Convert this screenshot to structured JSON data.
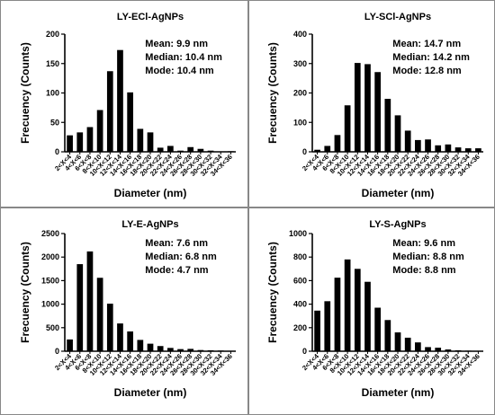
{
  "chart_data": [
    {
      "type": "bar",
      "title": "LY-ECl-AgNPs",
      "xlabel": "Diameter (nm)",
      "ylabel": "Frecuency (Counts)",
      "ylim": [
        0,
        200
      ],
      "yticks": [
        0,
        50,
        100,
        150,
        200
      ],
      "stats": [
        "Mean: 9.9 nm",
        "Median: 10.4 nm",
        "Mode: 10.4 nm"
      ],
      "categories": [
        "2<X<4",
        "4<X<6",
        "6<X<8",
        "8<X<10",
        "10<X<12",
        "12<X<14",
        "14<X<16",
        "16<X<18",
        "18<X<20",
        "20<X<22",
        "22<X<24",
        "24<X<26",
        "26<X<28",
        "28<X<30",
        "30<X<32",
        "32<X<34",
        "34<X<36"
      ],
      "values": [
        28,
        33,
        42,
        71,
        137,
        173,
        101,
        39,
        33,
        7,
        10,
        2,
        8,
        5,
        2,
        0,
        1
      ]
    },
    {
      "type": "bar",
      "title": "LY-SCl-AgNPs",
      "xlabel": "Diameter (nm)",
      "ylabel": "Frecuency (Counts)",
      "ylim": [
        0,
        400
      ],
      "yticks": [
        0,
        100,
        200,
        300,
        400
      ],
      "stats": [
        "Mean: 14.7 nm",
        "Median: 14.2 nm",
        "Mode: 12.8 nm"
      ],
      "categories": [
        "2<X<4",
        "4<X<6",
        "6<X<8",
        "8<X<10",
        "10<X<12",
        "12<X<14",
        "14<X<16",
        "16<X<18",
        "18<X<20",
        "20<X<22",
        "22<X<24",
        "24<X<26",
        "26<X<28",
        "28<X<30",
        "30<X<32",
        "32<X<34",
        "34<X<36"
      ],
      "values": [
        7,
        20,
        57,
        158,
        302,
        298,
        271,
        180,
        124,
        72,
        40,
        42,
        22,
        25,
        15,
        12,
        12
      ]
    },
    {
      "type": "bar",
      "title": "LY-E-AgNPs",
      "xlabel": "Diameter (nm)",
      "ylabel": "Frecuency (Counts)",
      "ylim": [
        0,
        2500
      ],
      "yticks": [
        0,
        500,
        1000,
        1500,
        2000,
        2500
      ],
      "stats": [
        "Mean: 7.6 nm",
        "Median: 6.8 nm",
        "Mode: 4.7 nm"
      ],
      "categories": [
        "2<X<4",
        "4<X<6",
        "6<X<8",
        "8<X<10",
        "10<X<12",
        "12<X<14",
        "14<X<16",
        "16<X<18",
        "18<X<20",
        "20<X<22",
        "22<X<24",
        "24<X<26",
        "26<X<28",
        "28<X<30",
        "30<X<32",
        "32<X<34",
        "34<X<36"
      ],
      "values": [
        250,
        1850,
        2120,
        1560,
        1010,
        590,
        420,
        240,
        160,
        110,
        70,
        45,
        50,
        25,
        20,
        15,
        10
      ]
    },
    {
      "type": "bar",
      "title": "LY-S-AgNPs",
      "xlabel": "Diameter (nm)",
      "ylabel": "Frecuency (Counts)",
      "ylim": [
        0,
        1000
      ],
      "yticks": [
        0,
        200,
        400,
        600,
        800,
        1000
      ],
      "stats": [
        "Mean: 9.6 nm",
        "Median: 8.8 nm",
        "Mode: 8.8 nm"
      ],
      "categories": [
        "2<X<4",
        "4<X<6",
        "6<X<8",
        "8<X<10",
        "10<X<12",
        "12<X<14",
        "14<X<16",
        "16<X<18",
        "18<X<20",
        "20<X<22",
        "22<X<24",
        "24<X<26",
        "26<X<28",
        "28<X<30",
        "30<X<32",
        "32<X<34",
        "34<X<36"
      ],
      "values": [
        345,
        425,
        625,
        780,
        700,
        590,
        370,
        265,
        160,
        115,
        75,
        35,
        30,
        15,
        8,
        5,
        3
      ]
    }
  ]
}
